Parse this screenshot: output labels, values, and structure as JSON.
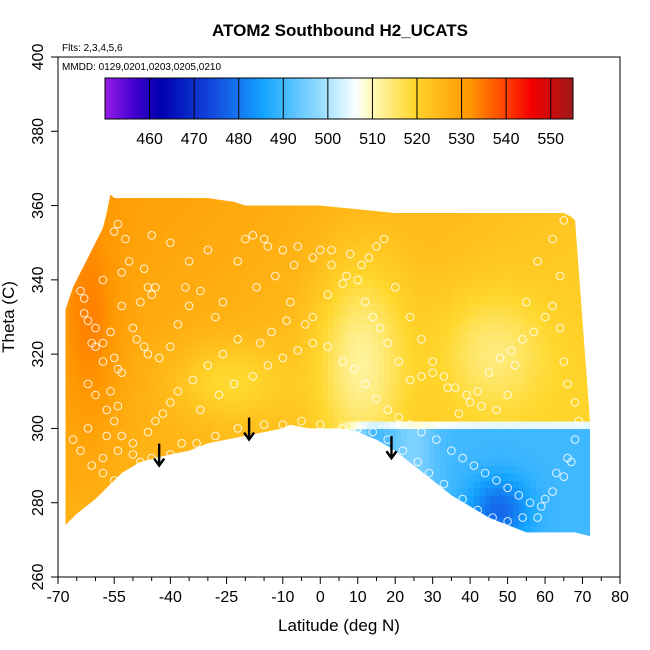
{
  "chart_data": {
    "type": "heatmap",
    "title": "ATOM2 Southbound H2_UCATS",
    "annotations": [
      "Flts: 2,3,4,5,6",
      "MMDD: 0129,0201,0203,0205,0210"
    ],
    "xlabel": "Latitude (deg N)",
    "ylabel": "Theta (C)",
    "xlim": [
      -70,
      80
    ],
    "ylim": [
      260,
      400
    ],
    "x_major_ticks": [
      -70,
      -55,
      -40,
      -25,
      -10,
      0,
      10,
      20,
      30,
      40,
      50,
      60,
      70,
      80
    ],
    "x_minor_ticks": [
      -65,
      -60,
      -50,
      -45,
      -35,
      -30,
      -20,
      -15,
      -5,
      5,
      15,
      25,
      35,
      45,
      55,
      65,
      75
    ],
    "y_ticks": [
      260,
      280,
      300,
      320,
      340,
      360,
      380,
      400
    ],
    "colorbar": {
      "ticks": [
        460,
        470,
        480,
        490,
        500,
        510,
        520,
        530,
        540,
        550
      ],
      "range": [
        450,
        555
      ],
      "position": "top-inset"
    },
    "grid": false,
    "lower_boundary": [
      [
        -68,
        274
      ],
      [
        -65,
        277
      ],
      [
        -60,
        281
      ],
      [
        -57,
        284
      ],
      [
        -53,
        288
      ],
      [
        -48,
        291
      ],
      [
        -44,
        292
      ],
      [
        -40,
        293
      ],
      [
        -35,
        294
      ],
      [
        -30,
        296
      ],
      [
        -25,
        297
      ],
      [
        -20,
        298
      ],
      [
        -15,
        299
      ],
      [
        -10,
        300
      ],
      [
        -8,
        301
      ],
      [
        -3,
        300
      ],
      [
        0,
        300
      ],
      [
        5,
        300
      ],
      [
        10,
        299
      ],
      [
        15,
        297
      ],
      [
        20,
        294
      ],
      [
        25,
        290
      ],
      [
        30,
        286
      ],
      [
        35,
        282
      ],
      [
        40,
        279
      ],
      [
        45,
        276
      ],
      [
        50,
        274
      ],
      [
        55,
        272
      ],
      [
        60,
        272
      ],
      [
        65,
        272
      ],
      [
        68,
        272
      ],
      [
        72,
        271
      ]
    ],
    "upper_boundary": [
      [
        -68,
        332
      ],
      [
        -66,
        338
      ],
      [
        -64,
        342
      ],
      [
        -62,
        346
      ],
      [
        -60,
        350
      ],
      [
        -58,
        354
      ],
      [
        -57,
        358
      ],
      [
        -56,
        363
      ],
      [
        -55,
        362
      ],
      [
        -50,
        362
      ],
      [
        -40,
        362
      ],
      [
        -30,
        362
      ],
      [
        -23,
        361
      ],
      [
        -20,
        360
      ],
      [
        -10,
        360
      ],
      [
        0,
        360
      ],
      [
        10,
        359
      ],
      [
        20,
        358
      ],
      [
        30,
        358
      ],
      [
        40,
        358
      ],
      [
        50,
        358
      ],
      [
        60,
        358
      ],
      [
        65,
        358
      ],
      [
        67,
        357
      ],
      [
        68,
        356
      ]
    ],
    "arrows": [
      {
        "lat": -43,
        "theta": 290
      },
      {
        "lat": -19,
        "theta": 297
      },
      {
        "lat": 19,
        "theta": 292
      }
    ],
    "points": [
      [
        -64,
        337
      ],
      [
        -63,
        335
      ],
      [
        -63,
        331
      ],
      [
        -61,
        323
      ],
      [
        -60,
        322
      ],
      [
        -58,
        323
      ],
      [
        -56,
        326
      ],
      [
        -55,
        319
      ],
      [
        -54,
        316
      ],
      [
        -53,
        315
      ],
      [
        -53,
        333
      ],
      [
        -51,
        345
      ],
      [
        -52,
        351
      ],
      [
        -54,
        355
      ],
      [
        -55,
        353
      ],
      [
        -47,
        343
      ],
      [
        -46,
        338
      ],
      [
        -44,
        338
      ],
      [
        -45,
        336
      ],
      [
        -48,
        334
      ],
      [
        -50,
        327
      ],
      [
        -49,
        324
      ],
      [
        -47,
        322
      ],
      [
        -46,
        320
      ],
      [
        -43,
        319
      ],
      [
        -40,
        322
      ],
      [
        -38,
        328
      ],
      [
        -35,
        333
      ],
      [
        -36,
        338
      ],
      [
        -32,
        337
      ],
      [
        -28,
        330
      ],
      [
        -26,
        334
      ],
      [
        -22,
        345
      ],
      [
        -20,
        351
      ],
      [
        -18,
        352
      ],
      [
        -15,
        351
      ],
      [
        -14,
        349
      ],
      [
        -10,
        348
      ],
      [
        -6,
        349
      ],
      [
        0,
        348
      ],
      [
        3,
        348
      ],
      [
        8,
        347
      ],
      [
        11,
        344
      ],
      [
        6,
        339
      ],
      [
        2,
        336
      ],
      [
        -2,
        330
      ],
      [
        -4,
        328
      ],
      [
        -8,
        334
      ],
      [
        -9,
        329
      ],
      [
        -13,
        326
      ],
      [
        -16,
        323
      ],
      [
        -22,
        324
      ],
      [
        -26,
        320
      ],
      [
        -30,
        317
      ],
      [
        -34,
        313
      ],
      [
        -38,
        310
      ],
      [
        -40,
        307
      ],
      [
        -42,
        304
      ],
      [
        -44,
        302
      ],
      [
        -46,
        299
      ],
      [
        -50,
        296
      ],
      [
        -54,
        294
      ],
      [
        -58,
        292
      ],
      [
        -62,
        300
      ],
      [
        -66,
        297
      ],
      [
        -64,
        294
      ],
      [
        -61,
        290
      ],
      [
        -58,
        288
      ],
      [
        -55,
        286
      ],
      [
        -52,
        284
      ],
      [
        -48,
        289
      ],
      [
        -45,
        292
      ],
      [
        -40,
        293
      ],
      [
        -33,
        296
      ],
      [
        -28,
        298
      ],
      [
        -22,
        300
      ],
      [
        -15,
        301
      ],
      [
        -10,
        301
      ],
      [
        -5,
        302
      ],
      [
        0,
        301
      ],
      [
        6,
        300
      ],
      [
        10,
        300
      ],
      [
        14,
        299
      ],
      [
        18,
        297
      ],
      [
        22,
        294
      ],
      [
        26,
        291
      ],
      [
        29,
        288
      ],
      [
        33,
        285
      ],
      [
        38,
        281
      ],
      [
        42,
        278
      ],
      [
        46,
        276
      ],
      [
        50,
        275
      ],
      [
        54,
        276
      ],
      [
        58,
        276
      ],
      [
        60,
        281
      ],
      [
        63,
        288
      ],
      [
        66,
        292
      ],
      [
        68,
        297
      ],
      [
        69,
        302
      ],
      [
        68,
        307
      ],
      [
        66,
        312
      ],
      [
        65,
        318
      ],
      [
        64,
        327
      ],
      [
        64,
        341
      ],
      [
        62,
        351
      ],
      [
        65,
        356
      ],
      [
        58,
        345
      ],
      [
        55,
        334
      ],
      [
        52,
        317
      ],
      [
        50,
        309
      ],
      [
        47,
        305
      ],
      [
        43,
        306
      ],
      [
        40,
        307
      ],
      [
        37,
        304
      ],
      [
        34,
        311
      ],
      [
        30,
        315
      ],
      [
        27,
        314
      ],
      [
        24,
        313
      ],
      [
        21,
        318
      ],
      [
        18,
        323
      ],
      [
        16,
        327
      ],
      [
        14,
        330
      ],
      [
        12,
        334
      ],
      [
        10,
        340
      ],
      [
        13,
        346
      ],
      [
        15,
        349
      ],
      [
        17,
        351
      ],
      [
        20,
        338
      ],
      [
        24,
        330
      ],
      [
        27,
        324
      ],
      [
        30,
        318
      ],
      [
        33,
        314
      ],
      [
        36,
        311
      ],
      [
        39,
        309
      ],
      [
        42,
        310
      ],
      [
        45,
        315
      ],
      [
        48,
        319
      ],
      [
        51,
        321
      ],
      [
        54,
        324
      ],
      [
        57,
        326
      ],
      [
        60,
        330
      ],
      [
        62,
        333
      ],
      [
        -17,
        338
      ],
      [
        -12,
        341
      ],
      [
        -7,
        344
      ],
      [
        -2,
        346
      ],
      [
        3,
        344
      ],
      [
        7,
        341
      ],
      [
        -30,
        348
      ],
      [
        -35,
        345
      ],
      [
        -40,
        350
      ],
      [
        -45,
        352
      ],
      [
        -53,
        342
      ],
      [
        -58,
        340
      ],
      [
        -62,
        329
      ],
      [
        -60,
        327
      ],
      [
        -58,
        318
      ],
      [
        -56,
        310
      ],
      [
        -57,
        305
      ],
      [
        -55,
        302
      ],
      [
        -53,
        298
      ],
      [
        -50,
        293
      ],
      [
        -48,
        291
      ],
      [
        -42,
        291
      ],
      [
        -37,
        296
      ],
      [
        -32,
        305
      ],
      [
        -27,
        309
      ],
      [
        -23,
        312
      ],
      [
        -18,
        314
      ],
      [
        -14,
        317
      ],
      [
        -10,
        319
      ],
      [
        -6,
        321
      ],
      [
        -2,
        323
      ],
      [
        2,
        322
      ],
      [
        6,
        318
      ],
      [
        9,
        316
      ],
      [
        12,
        312
      ],
      [
        15,
        308
      ],
      [
        18,
        305
      ],
      [
        21,
        303
      ],
      [
        24,
        301
      ],
      [
        27,
        299
      ],
      [
        31,
        297
      ],
      [
        35,
        294
      ],
      [
        38,
        292
      ],
      [
        41,
        290
      ],
      [
        44,
        288
      ],
      [
        47,
        286
      ],
      [
        50,
        284
      ],
      [
        53,
        282
      ],
      [
        56,
        280
      ],
      [
        59,
        279
      ],
      [
        62,
        283
      ],
      [
        65,
        287
      ],
      [
        67,
        291
      ],
      [
        -62,
        312
      ],
      [
        -60,
        309
      ],
      [
        -57,
        298
      ],
      [
        -54,
        306
      ]
    ]
  }
}
